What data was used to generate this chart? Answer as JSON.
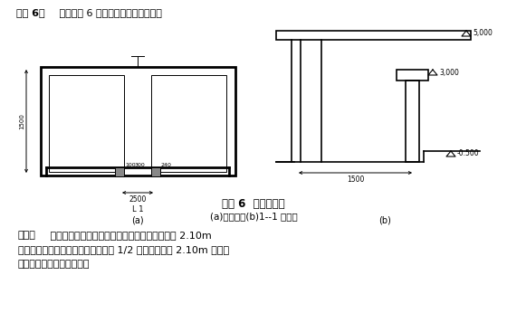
{
  "bg_color": "#ffffff",
  "title_bold": "【例 6】",
  "title_normal": " 计算附图 6 所示有柱雨篷建筑面积。",
  "caption_bold": "附图 6  雨篷示意图",
  "caption_sub": "(a)平面图；(b)1--1 剑面图",
  "sol_bold": "【解】",
  "sol_line1": " 雨篷结构的外边线至外墙结构外边线的宽度超过 2.10m",
  "sol_line2": "者；按雨篷结构板的水平投影面积的 1/2 计算。宽度在 2.10m 及以内",
  "sol_line3": "的雨篷则不计算建筑面积。"
}
